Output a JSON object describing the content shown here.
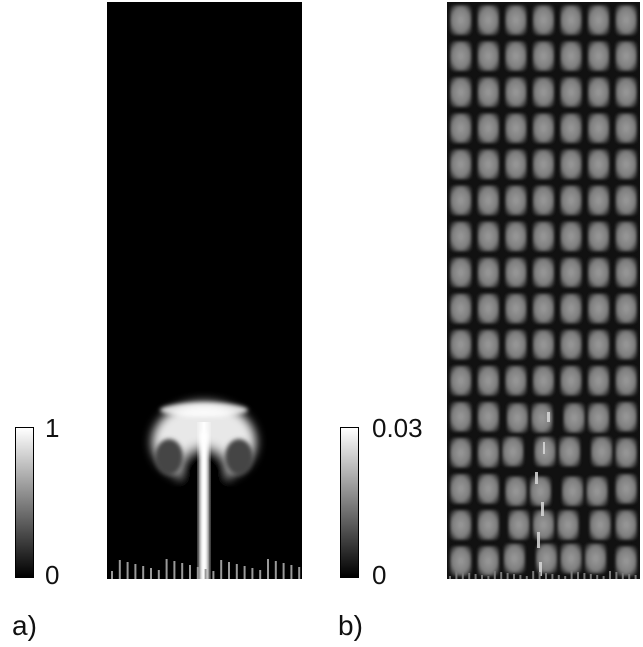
{
  "panels": [
    {
      "label": "a)",
      "colorbar": {
        "max": "1",
        "min": "0"
      }
    },
    {
      "label": "b)",
      "colorbar": {
        "max": "0.03",
        "min": "0"
      }
    }
  ],
  "colors": {
    "background": "#000000",
    "plume": "#ffffff",
    "grid_cell": "#8a8a8a"
  }
}
